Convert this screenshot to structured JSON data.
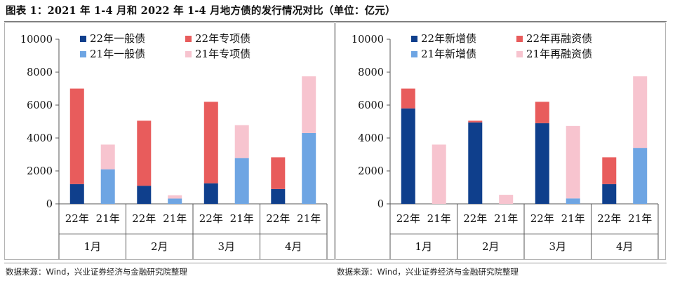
{
  "title": "图表 1：2021 年 1-4 月和 2022 年 1-4 月地方债的发行情况对比（单位：亿元）",
  "source_left": "数据来源：Wind，兴业证券经济与金融研究院整理",
  "source_right": "数据来源：Wind，兴业证券经济与金融研究院整理",
  "colors": {
    "dark_blue": "#0f3f8c",
    "red": "#e85c5c",
    "light_blue": "#6ea5e3",
    "pink": "#f7c4cf"
  },
  "chart_data": [
    {
      "type": "bar",
      "stacked": true,
      "months": [
        "1月",
        "2月",
        "3月",
        "4月"
      ],
      "year_labels": [
        "22年",
        "21年"
      ],
      "y_ticks": [
        "0",
        "2000",
        "4000",
        "6000",
        "8000",
        "10000"
      ],
      "ylim": [
        0,
        10000
      ],
      "legend_placement": "top",
      "series": [
        {
          "name": "22年一般债",
          "color": "#0f3f8c",
          "bar": "22",
          "values": [
            1200,
            1100,
            1250,
            900
          ]
        },
        {
          "name": "22年专项债",
          "color": "#e85c5c",
          "bar": "22",
          "values": [
            5800,
            3950,
            4950,
            1930
          ]
        },
        {
          "name": "21年一般债",
          "color": "#6ea5e3",
          "bar": "21",
          "values": [
            2100,
            320,
            2780,
            4300
          ]
        },
        {
          "name": "21年专项债",
          "color": "#f7c4cf",
          "bar": "21",
          "values": [
            1500,
            200,
            2000,
            3450
          ]
        }
      ]
    },
    {
      "type": "bar",
      "stacked": true,
      "months": [
        "1月",
        "2月",
        "3月",
        "4月"
      ],
      "year_labels": [
        "22年",
        "21年"
      ],
      "y_ticks": [
        "0",
        "2000",
        "4000",
        "6000",
        "8000",
        "10000"
      ],
      "ylim": [
        0,
        10000
      ],
      "legend_placement": "top",
      "series": [
        {
          "name": "22年新增债",
          "color": "#0f3f8c",
          "bar": "22",
          "values": [
            5800,
            4950,
            4900,
            1200
          ]
        },
        {
          "name": "22年再融资债",
          "color": "#e85c5c",
          "bar": "22",
          "values": [
            1200,
            100,
            1300,
            1630
          ]
        },
        {
          "name": "21年新增债",
          "color": "#6ea5e3",
          "bar": "21",
          "values": [
            0,
            0,
            330,
            3400
          ]
        },
        {
          "name": "21年再融资债",
          "color": "#f7c4cf",
          "bar": "21",
          "values": [
            3600,
            550,
            4400,
            4350
          ]
        }
      ]
    }
  ]
}
